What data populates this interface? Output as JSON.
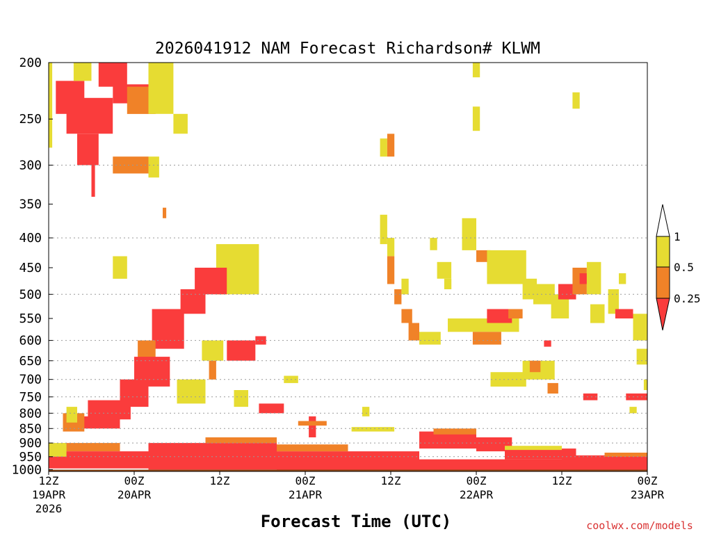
{
  "chart_data": {
    "type": "heatmap",
    "title": "2026041912 NAM Forecast Richardson# KLWM",
    "xlabel": "Forecast Time (UTC)",
    "ylabel": "",
    "credit": "coolwx.com/models",
    "y_scale": "log-pressure",
    "ylim": [
      1000,
      200
    ],
    "xlim": [
      0,
      84
    ],
    "y_ticks": [
      200,
      250,
      300,
      350,
      400,
      450,
      500,
      550,
      600,
      650,
      700,
      750,
      800,
      850,
      900,
      950,
      1000
    ],
    "y_gridlines": [
      300,
      400,
      500,
      600,
      650,
      700,
      750,
      800,
      850,
      900,
      950
    ],
    "x_ticks": [
      {
        "hour": 0,
        "time": "12Z",
        "date": "19APR",
        "year": "2026"
      },
      {
        "hour": 12,
        "time": "00Z",
        "date": "20APR",
        "year": ""
      },
      {
        "hour": 24,
        "time": "12Z",
        "date": "",
        "year": ""
      },
      {
        "hour": 36,
        "time": "00Z",
        "date": "21APR",
        "year": ""
      },
      {
        "hour": 48,
        "time": "12Z",
        "date": "",
        "year": ""
      },
      {
        "hour": 60,
        "time": "00Z",
        "date": "22APR",
        "year": ""
      },
      {
        "hour": 72,
        "time": "12Z",
        "date": "",
        "year": ""
      },
      {
        "hour": 84,
        "time": "00Z",
        "date": "23APR",
        "year": ""
      }
    ],
    "colorbar": {
      "levels": [
        "1",
        "0.5",
        "0.25"
      ],
      "bins": [
        {
          "range": "> 1",
          "color": "#ffffff"
        },
        {
          "range": "0.5-1",
          "color": "#e6dc32"
        },
        {
          "range": "0.25-0.5",
          "color": "#f08228"
        },
        {
          "range": "< 0.25",
          "color": "#fa3c3c"
        }
      ]
    },
    "colors": {
      "low": "#fa3c3c",
      "mid": "#f08228",
      "high": "#e6dc32",
      "ground": "#8b4513"
    },
    "ground_level_hpa": 1007,
    "regions": [
      {
        "cat": "high",
        "t0": 0.0,
        "t1": 0.5,
        "p0": 200,
        "p1": 280
      },
      {
        "cat": "low",
        "t0": 1.0,
        "t1": 5.0,
        "p0": 215,
        "p1": 245
      },
      {
        "cat": "high",
        "t0": 3.5,
        "t1": 6.0,
        "p0": 200,
        "p1": 215
      },
      {
        "cat": "low",
        "t0": 2.5,
        "t1": 9.0,
        "p0": 230,
        "p1": 265
      },
      {
        "cat": "low",
        "t0": 4.0,
        "t1": 7.0,
        "p0": 265,
        "p1": 300
      },
      {
        "cat": "low",
        "t0": 7.0,
        "t1": 11.0,
        "p0": 200,
        "p1": 220
      },
      {
        "cat": "low",
        "t0": 9.0,
        "t1": 14.0,
        "p0": 218,
        "p1": 235
      },
      {
        "cat": "mid",
        "t0": 11.0,
        "t1": 15.0,
        "p0": 220,
        "p1": 245
      },
      {
        "cat": "high",
        "t0": 14.0,
        "t1": 17.5,
        "p0": 200,
        "p1": 245
      },
      {
        "cat": "high",
        "t0": 17.5,
        "t1": 19.5,
        "p0": 245,
        "p1": 265
      },
      {
        "cat": "mid",
        "t0": 9.0,
        "t1": 14.0,
        "p0": 290,
        "p1": 310
      },
      {
        "cat": "high",
        "t0": 14.0,
        "t1": 15.5,
        "p0": 290,
        "p1": 315
      },
      {
        "cat": "low",
        "t0": 6.0,
        "t1": 6.5,
        "p0": 300,
        "p1": 340
      },
      {
        "cat": "mid",
        "t0": 16.0,
        "t1": 16.5,
        "p0": 355,
        "p1": 370
      },
      {
        "cat": "mid",
        "t0": 24.5,
        "t1": 27.0,
        "p0": 420,
        "p1": 480
      },
      {
        "cat": "high",
        "t0": 23.5,
        "t1": 29.5,
        "p0": 410,
        "p1": 500
      },
      {
        "cat": "low",
        "t0": 20.5,
        "t1": 25.0,
        "p0": 450,
        "p1": 500
      },
      {
        "cat": "low",
        "t0": 18.5,
        "t1": 22.0,
        "p0": 490,
        "p1": 540
      },
      {
        "cat": "low",
        "t0": 14.5,
        "t1": 19.0,
        "p0": 530,
        "p1": 620
      },
      {
        "cat": "mid",
        "t0": 12.5,
        "t1": 15.0,
        "p0": 600,
        "p1": 680
      },
      {
        "cat": "high",
        "t0": 9.0,
        "t1": 11.0,
        "p0": 430,
        "p1": 470
      },
      {
        "cat": "low",
        "t0": 12.0,
        "t1": 17.0,
        "p0": 640,
        "p1": 720
      },
      {
        "cat": "low",
        "t0": 10.0,
        "t1": 14.0,
        "p0": 700,
        "p1": 780
      },
      {
        "cat": "low",
        "t0": 5.5,
        "t1": 11.5,
        "p0": 760,
        "p1": 820
      },
      {
        "cat": "low",
        "t0": 3.5,
        "t1": 10.0,
        "p0": 810,
        "p1": 850
      },
      {
        "cat": "mid",
        "t0": 2.0,
        "t1": 5.0,
        "p0": 800,
        "p1": 860
      },
      {
        "cat": "high",
        "t0": 2.5,
        "t1": 4.0,
        "p0": 780,
        "p1": 830
      },
      {
        "cat": "low",
        "t0": 25.0,
        "t1": 29.0,
        "p0": 600,
        "p1": 650
      },
      {
        "cat": "high",
        "t0": 21.5,
        "t1": 24.5,
        "p0": 600,
        "p1": 650
      },
      {
        "cat": "mid",
        "t0": 22.5,
        "t1": 23.5,
        "p0": 650,
        "p1": 700
      },
      {
        "cat": "high",
        "t0": 18.0,
        "t1": 22.0,
        "p0": 700,
        "p1": 770
      },
      {
        "cat": "low",
        "t0": 29.0,
        "t1": 30.5,
        "p0": 590,
        "p1": 610
      },
      {
        "cat": "high",
        "t0": 26.0,
        "t1": 28.0,
        "p0": 730,
        "p1": 780
      },
      {
        "cat": "low",
        "t0": 29.5,
        "t1": 33.0,
        "p0": 770,
        "p1": 800
      },
      {
        "cat": "high",
        "t0": 33.0,
        "t1": 35.0,
        "p0": 690,
        "p1": 710
      },
      {
        "cat": "low",
        "t0": 36.5,
        "t1": 37.5,
        "p0": 810,
        "p1": 880
      },
      {
        "cat": "mid",
        "t0": 35.0,
        "t1": 39.0,
        "p0": 825,
        "p1": 840
      },
      {
        "cat": "high",
        "t0": 42.5,
        "t1": 48.5,
        "p0": 845,
        "p1": 860
      },
      {
        "cat": "high",
        "t0": 44.0,
        "t1": 45.0,
        "p0": 780,
        "p1": 810
      },
      {
        "cat": "high",
        "t0": 46.5,
        "t1": 47.5,
        "p0": 270,
        "p1": 290
      },
      {
        "cat": "mid",
        "t0": 47.5,
        "t1": 48.5,
        "p0": 265,
        "p1": 290
      },
      {
        "cat": "high",
        "t0": 59.5,
        "t1": 60.5,
        "p0": 200,
        "p1": 212
      },
      {
        "cat": "high",
        "t0": 59.5,
        "t1": 60.5,
        "p0": 238,
        "p1": 262
      },
      {
        "cat": "high",
        "t0": 73.5,
        "t1": 74.5,
        "p0": 225,
        "p1": 240
      },
      {
        "cat": "high",
        "t0": 46.5,
        "t1": 47.5,
        "p0": 365,
        "p1": 410
      },
      {
        "cat": "mid",
        "t0": 47.5,
        "t1": 48.5,
        "p0": 430,
        "p1": 480
      },
      {
        "cat": "high",
        "t0": 47.5,
        "t1": 48.5,
        "p0": 400,
        "p1": 430
      },
      {
        "cat": "mid",
        "t0": 48.5,
        "t1": 49.5,
        "p0": 490,
        "p1": 520
      },
      {
        "cat": "mid",
        "t0": 49.5,
        "t1": 51.0,
        "p0": 530,
        "p1": 560
      },
      {
        "cat": "mid",
        "t0": 50.5,
        "t1": 52.0,
        "p0": 560,
        "p1": 600
      },
      {
        "cat": "high",
        "t0": 49.5,
        "t1": 50.5,
        "p0": 470,
        "p1": 500
      },
      {
        "cat": "high",
        "t0": 52.0,
        "t1": 55.0,
        "p0": 580,
        "p1": 610
      },
      {
        "cat": "high",
        "t0": 53.5,
        "t1": 54.5,
        "p0": 400,
        "p1": 420
      },
      {
        "cat": "high",
        "t0": 54.5,
        "t1": 56.5,
        "p0": 440,
        "p1": 470
      },
      {
        "cat": "high",
        "t0": 55.5,
        "t1": 56.5,
        "p0": 470,
        "p1": 490
      },
      {
        "cat": "high",
        "t0": 58.0,
        "t1": 60.0,
        "p0": 370,
        "p1": 420
      },
      {
        "cat": "mid",
        "t0": 60.0,
        "t1": 62.0,
        "p0": 420,
        "p1": 440
      },
      {
        "cat": "high",
        "t0": 61.5,
        "t1": 67.0,
        "p0": 420,
        "p1": 480
      },
      {
        "cat": "high",
        "t0": 66.5,
        "t1": 68.5,
        "p0": 470,
        "p1": 510
      },
      {
        "cat": "high",
        "t0": 68.0,
        "t1": 71.0,
        "p0": 480,
        "p1": 520
      },
      {
        "cat": "high",
        "t0": 56.0,
        "t1": 66.0,
        "p0": 550,
        "p1": 580
      },
      {
        "cat": "mid",
        "t0": 59.5,
        "t1": 63.5,
        "p0": 580,
        "p1": 610
      },
      {
        "cat": "low",
        "t0": 61.5,
        "t1": 65.0,
        "p0": 530,
        "p1": 560
      },
      {
        "cat": "mid",
        "t0": 64.5,
        "t1": 66.5,
        "p0": 530,
        "p1": 550
      },
      {
        "cat": "high",
        "t0": 62.0,
        "t1": 67.0,
        "p0": 680,
        "p1": 720
      },
      {
        "cat": "high",
        "t0": 66.5,
        "t1": 71.0,
        "p0": 650,
        "p1": 700
      },
      {
        "cat": "mid",
        "t0": 67.5,
        "t1": 69.0,
        "p0": 650,
        "p1": 680
      },
      {
        "cat": "low",
        "t0": 69.5,
        "t1": 70.5,
        "p0": 600,
        "p1": 615
      },
      {
        "cat": "mid",
        "t0": 70.0,
        "t1": 71.5,
        "p0": 710,
        "p1": 740
      },
      {
        "cat": "high",
        "t0": 70.5,
        "t1": 73.0,
        "p0": 500,
        "p1": 550
      },
      {
        "cat": "low",
        "t0": 71.5,
        "t1": 74.0,
        "p0": 480,
        "p1": 510
      },
      {
        "cat": "mid",
        "t0": 73.5,
        "t1": 75.5,
        "p0": 450,
        "p1": 500
      },
      {
        "cat": "low",
        "t0": 74.5,
        "t1": 75.5,
        "p0": 460,
        "p1": 480
      },
      {
        "cat": "high",
        "t0": 75.5,
        "t1": 77.5,
        "p0": 440,
        "p1": 500
      },
      {
        "cat": "high",
        "t0": 76.0,
        "t1": 78.0,
        "p0": 520,
        "p1": 560
      },
      {
        "cat": "high",
        "t0": 78.5,
        "t1": 80.0,
        "p0": 490,
        "p1": 540
      },
      {
        "cat": "low",
        "t0": 79.5,
        "t1": 82.0,
        "p0": 530,
        "p1": 550
      },
      {
        "cat": "high",
        "t0": 82.0,
        "t1": 84.0,
        "p0": 540,
        "p1": 600
      },
      {
        "cat": "high",
        "t0": 82.5,
        "t1": 84.0,
        "p0": 620,
        "p1": 660
      },
      {
        "cat": "high",
        "t0": 80.0,
        "t1": 81.0,
        "p0": 460,
        "p1": 480
      },
      {
        "cat": "low",
        "t0": 81.0,
        "t1": 84.0,
        "p0": 740,
        "p1": 760
      },
      {
        "cat": "high",
        "t0": 83.5,
        "t1": 84.0,
        "p0": 700,
        "p1": 730
      },
      {
        "cat": "low",
        "t0": 75.0,
        "t1": 77.0,
        "p0": 740,
        "p1": 760
      },
      {
        "cat": "high",
        "t0": 81.5,
        "t1": 82.5,
        "p0": 780,
        "p1": 800
      },
      {
        "cat": "low",
        "t0": 52.0,
        "t1": 60.0,
        "p0": 860,
        "p1": 920
      },
      {
        "cat": "mid",
        "t0": 54.0,
        "t1": 60.0,
        "p0": 850,
        "p1": 870
      },
      {
        "cat": "low",
        "t0": 60.0,
        "t1": 65.0,
        "p0": 880,
        "p1": 930
      },
      {
        "cat": "low",
        "t0": 64.0,
        "t1": 74.0,
        "p0": 920,
        "p1": 960
      },
      {
        "cat": "high",
        "t0": 64.0,
        "t1": 72.0,
        "p0": 910,
        "p1": 925
      },
      {
        "cat": "low",
        "t0": 72.0,
        "t1": 84.0,
        "p0": 945,
        "p1": 990
      },
      {
        "cat": "mid",
        "t0": 78.0,
        "t1": 84.0,
        "p0": 935,
        "p1": 950
      },
      {
        "cat": "low",
        "t0": 0.0,
        "t1": 14.0,
        "p0": 930,
        "p1": 995
      },
      {
        "cat": "mid",
        "t0": 2.0,
        "t1": 10.0,
        "p0": 900,
        "p1": 930
      },
      {
        "cat": "high",
        "t0": 0.0,
        "t1": 2.5,
        "p0": 900,
        "p1": 950
      },
      {
        "cat": "low",
        "t0": 14.0,
        "t1": 32.0,
        "p0": 900,
        "p1": 1000
      },
      {
        "cat": "mid",
        "t0": 22.0,
        "t1": 32.0,
        "p0": 880,
        "p1": 900
      },
      {
        "cat": "low",
        "t0": 32.0,
        "t1": 52.0,
        "p0": 930,
        "p1": 1000
      },
      {
        "cat": "mid",
        "t0": 32.0,
        "t1": 42.0,
        "p0": 905,
        "p1": 930
      },
      {
        "cat": "low",
        "t0": 52.0,
        "t1": 84.0,
        "p0": 960,
        "p1": 1002
      }
    ]
  }
}
